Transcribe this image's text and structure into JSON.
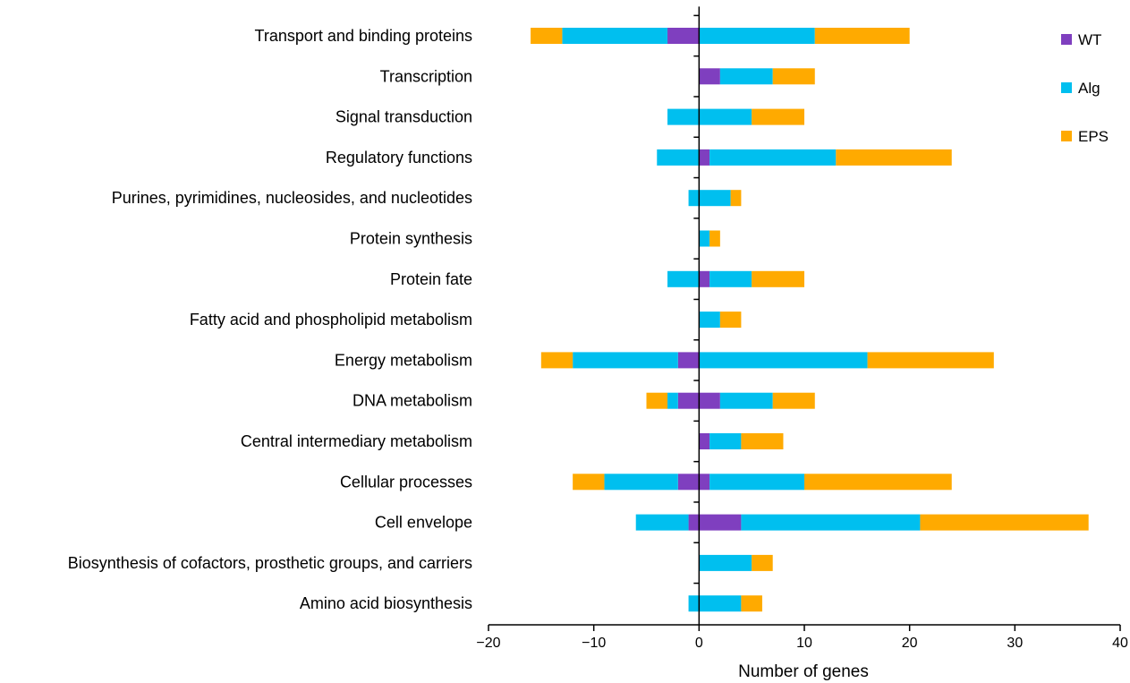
{
  "chart_data": {
    "type": "bar",
    "orientation": "horizontal",
    "stacked": true,
    "diverging": true,
    "title": "",
    "xlabel": "Number of genes",
    "ylabel": "",
    "xlim": [
      -20,
      40
    ],
    "xticks": [
      -20,
      -10,
      0,
      10,
      20,
      30,
      40
    ],
    "xtick_labels": [
      "−20",
      "−10",
      "0",
      "10",
      "20",
      "30",
      "40"
    ],
    "grid": false,
    "legend_position": "top-right",
    "categories": [
      "Transport and binding proteins",
      "Transcription",
      "Signal transduction",
      "Regulatory functions",
      "Purines, pyrimidines, nucleosides, and nucleotides",
      "Protein synthesis",
      "Protein fate",
      "Fatty acid and phospholipid metabolism",
      "Energy metabolism",
      "DNA metabolism",
      "Central intermediary metabolism",
      "Cellular processes",
      "Cell envelope",
      "Biosynthesis of cofactors, prosthetic groups, and carriers",
      "Amino acid biosynthesis"
    ],
    "series": [
      {
        "name": "WT",
        "color": "#7f3fbf",
        "positive": [
          0,
          2,
          0,
          1,
          0,
          0,
          1,
          0,
          0,
          2,
          1,
          1,
          4,
          0,
          0
        ],
        "negative": [
          3,
          0,
          0,
          0,
          0,
          0,
          0,
          0,
          2,
          2,
          0,
          2,
          1,
          0,
          0
        ]
      },
      {
        "name": "Alg",
        "color": "#00bfef",
        "positive": [
          11,
          5,
          5,
          12,
          3,
          1,
          4,
          2,
          16,
          5,
          3,
          9,
          17,
          5,
          4
        ],
        "negative": [
          10,
          0,
          3,
          4,
          1,
          0,
          3,
          0,
          10,
          1,
          0,
          7,
          5,
          0,
          1
        ]
      },
      {
        "name": "EPS",
        "color": "#ffaa00",
        "positive": [
          9,
          4,
          5,
          11,
          1,
          1,
          5,
          2,
          12,
          4,
          4,
          14,
          16,
          2,
          2
        ],
        "negative": [
          3,
          0,
          0,
          0,
          0,
          0,
          0,
          0,
          3,
          2,
          0,
          3,
          0,
          0,
          0
        ]
      }
    ]
  }
}
